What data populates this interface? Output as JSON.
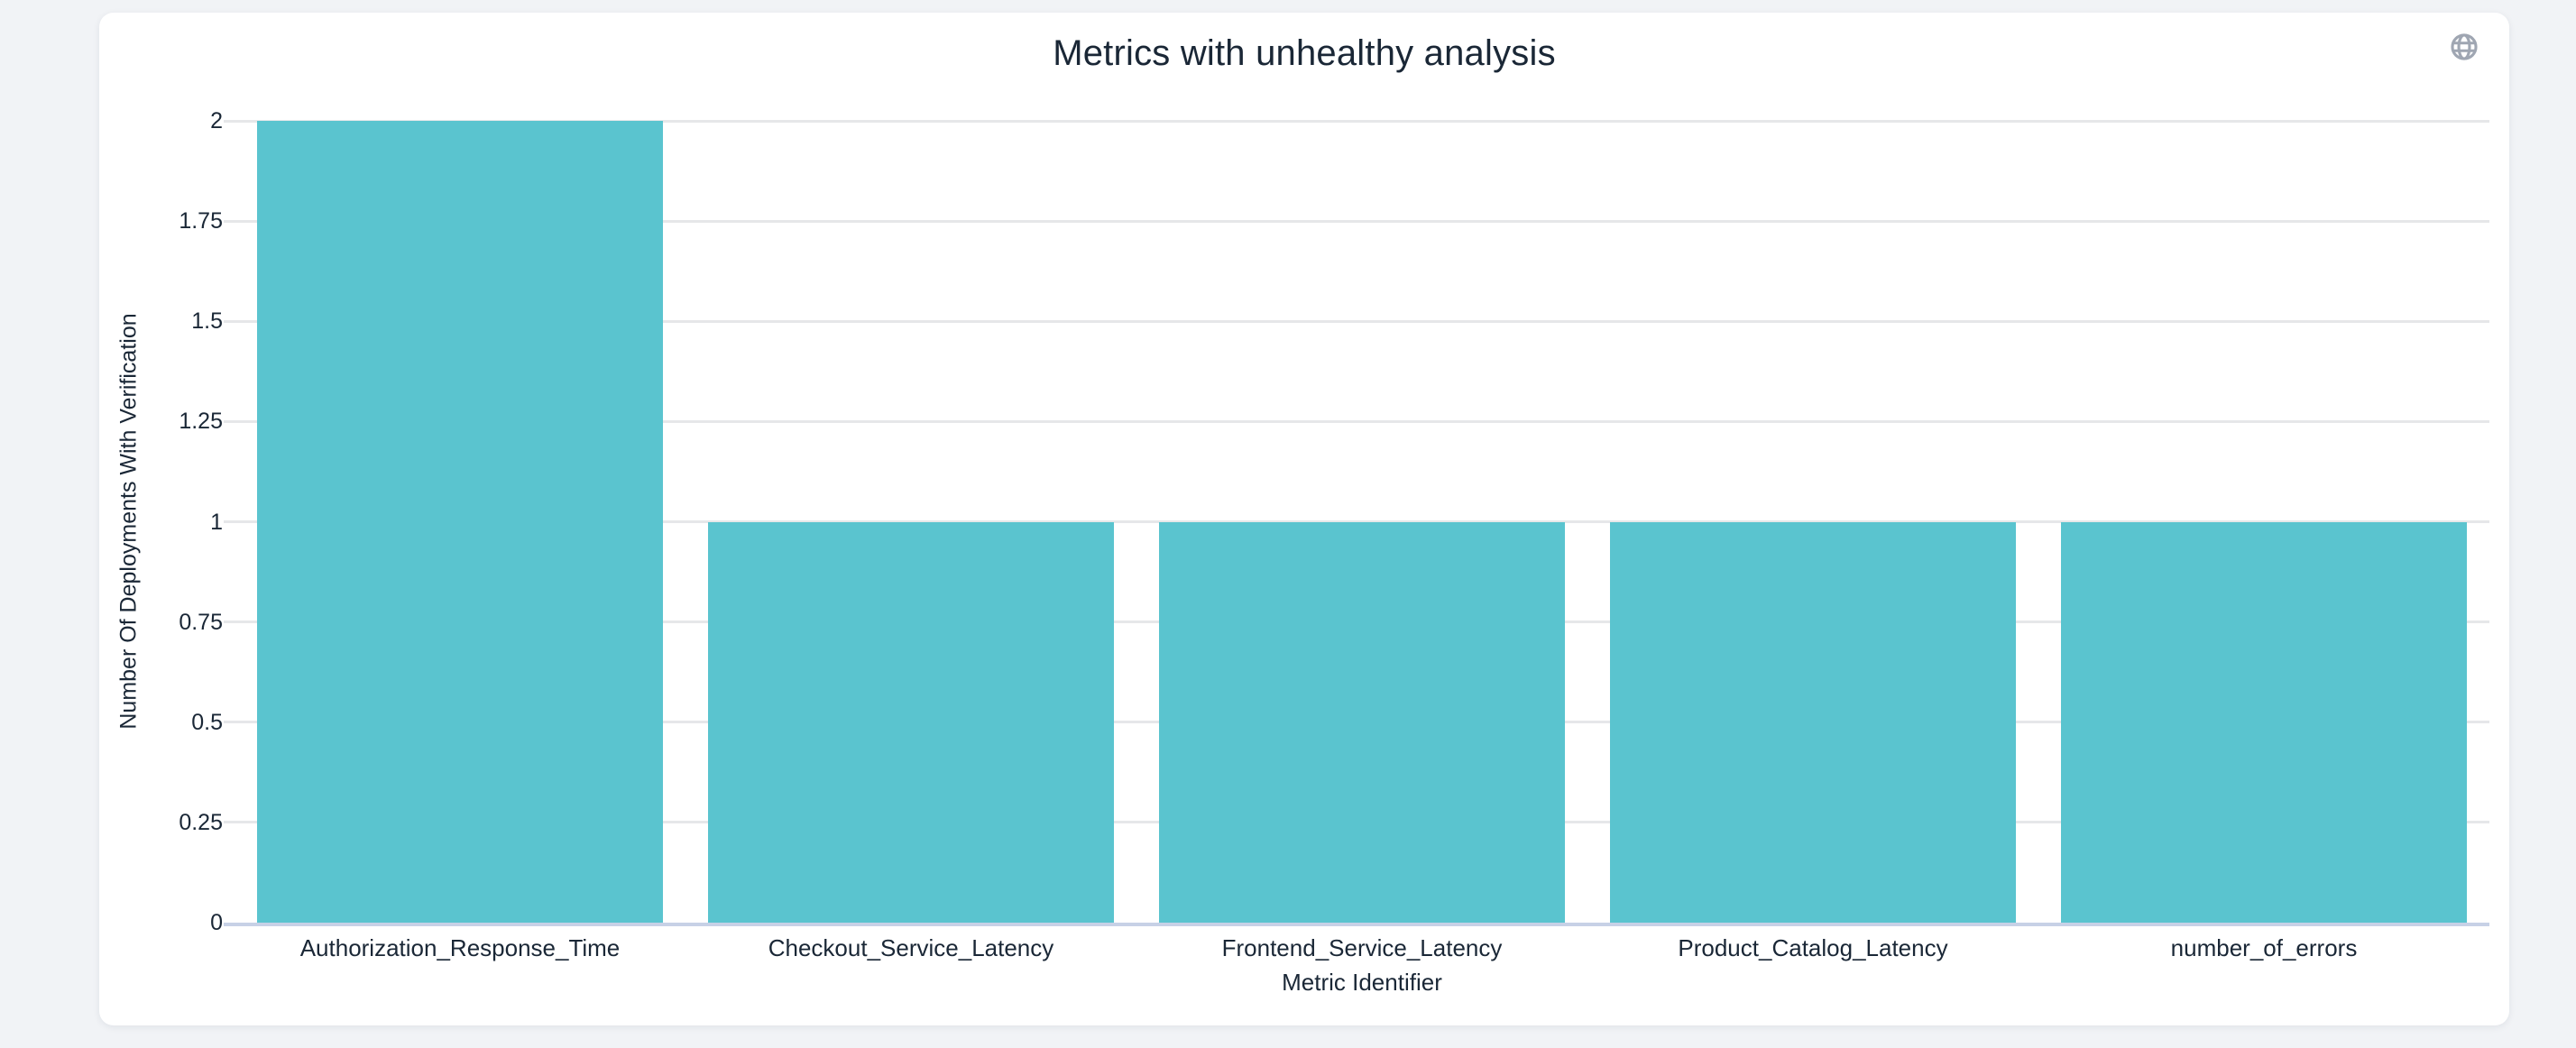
{
  "window": {
    "background_color": "#F1F3F6",
    "card_background_color": "#FFFFFF"
  },
  "header": {
    "globe_icon": "globe"
  },
  "chart_data": {
    "type": "bar",
    "title": "Metrics with unhealthy analysis",
    "categories": [
      "Authorization_Response_Time",
      "Checkout_Service_Latency",
      "Frontend_Service_Latency",
      "Product_Catalog_Latency",
      "number_of_errors"
    ],
    "values": [
      2,
      1,
      1,
      1,
      1
    ],
    "xlabel": "Metric Identifier",
    "ylabel": "Number Of Deployments With Verification",
    "ylim": [
      0,
      2
    ],
    "yticks": [
      0,
      0.25,
      0.5,
      0.75,
      1,
      1.25,
      1.5,
      1.75,
      2
    ],
    "ytick_labels": [
      "0",
      "0.25",
      "0.5",
      "0.75",
      "1",
      "1.25",
      "1.5",
      "1.75",
      "2"
    ],
    "grid": true,
    "legend": "none",
    "bar_color": "#5AC4CF",
    "grid_color": "#E6E7E9",
    "zero_line_color": "#C7D1E6",
    "text_color": "#1A2736",
    "icon_color": "#9FA6B2"
  }
}
